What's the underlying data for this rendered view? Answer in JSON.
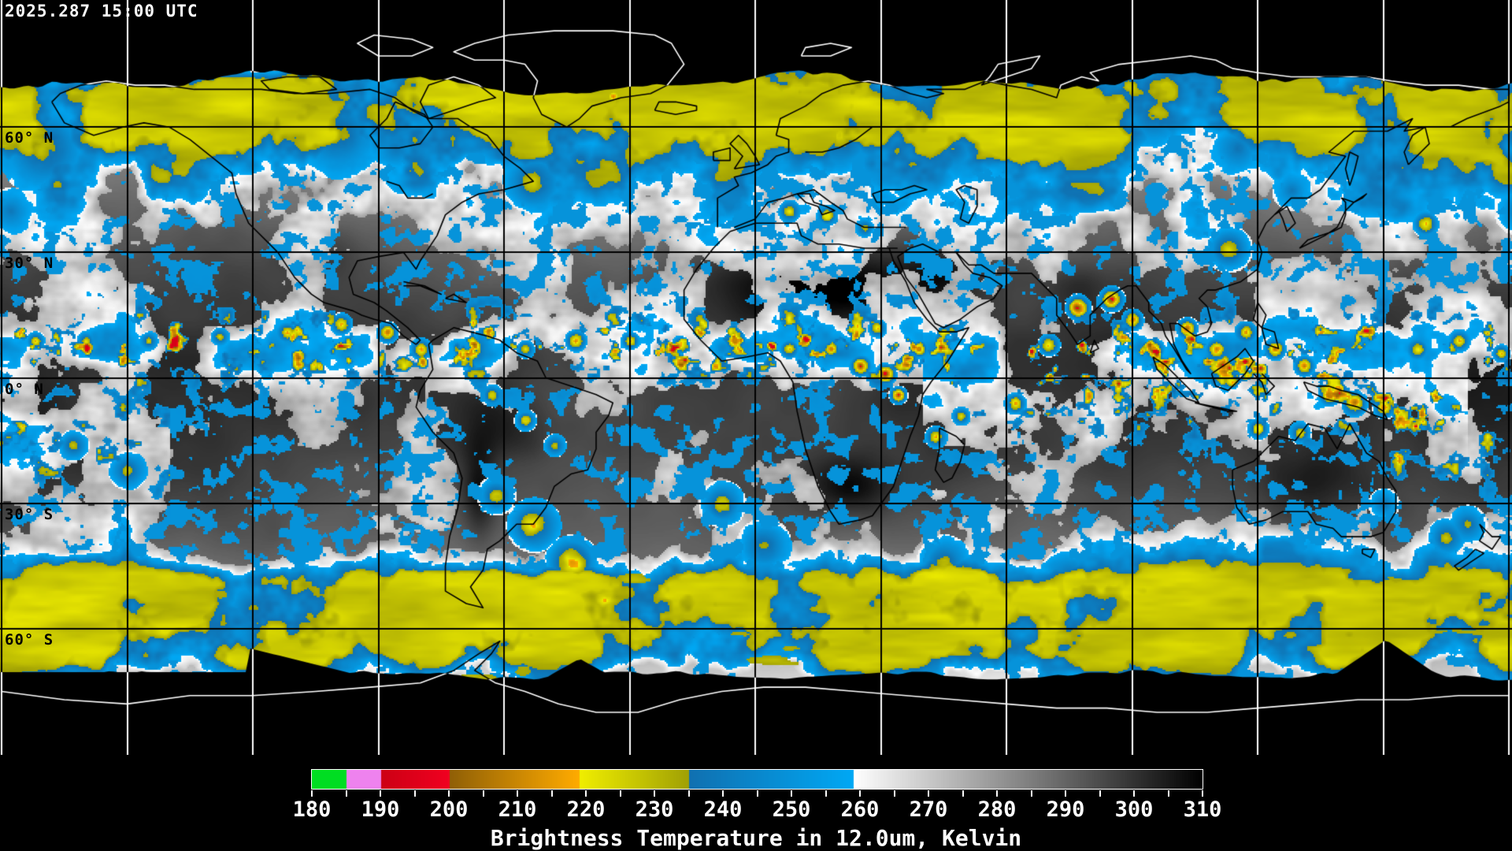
{
  "header": {
    "timestamp": "2025.287 15:00 UTC"
  },
  "map": {
    "projection": "equirectangular",
    "latitude_labels": [
      {
        "text": "60° N",
        "lat": 60
      },
      {
        "text": "30° N",
        "lat": 30
      },
      {
        "text": "0° N",
        "lat": 0
      },
      {
        "text": "30° S",
        "lat": -30
      },
      {
        "text": "60° S",
        "lat": -60
      }
    ],
    "graticule": {
      "lon_step_deg": 30,
      "lat_step_deg": 30,
      "line_color_over_data": "#000000",
      "line_color_over_nodata": "#ffffff"
    },
    "coastline_color_over_data": "#000000",
    "coastline_color_over_nodata": "#ffffff",
    "nodata_color": "#000000"
  },
  "colorbar": {
    "title": "Brightness Temperature in 12.0um, Kelvin",
    "units": "Kelvin",
    "min": 180,
    "max": 310,
    "tick_interval": 5,
    "label_interval": 10,
    "tick_labels": [
      "180",
      "190",
      "200",
      "210",
      "220",
      "230",
      "240",
      "250",
      "260",
      "270",
      "280",
      "290",
      "300",
      "310"
    ],
    "tick_color": "#ffffff",
    "border_color": "#ffffff",
    "stops": [
      {
        "from": 180,
        "to": 185,
        "from_color": "#00dd22",
        "to_color": "#00dd22",
        "name": "green"
      },
      {
        "from": 185,
        "to": 190,
        "from_color": "#ee82ee",
        "to_color": "#ee82ee",
        "name": "violet"
      },
      {
        "from": 190,
        "to": 200,
        "from_color": "#cc0014",
        "to_color": "#f00020",
        "name": "red"
      },
      {
        "from": 200,
        "to": 219,
        "from_color": "#8f5f06",
        "to_color": "#ffab00",
        "name": "orange"
      },
      {
        "from": 219,
        "to": 235,
        "from_color": "#f0ee00",
        "to_color": "#a0a004",
        "name": "yellow-olive"
      },
      {
        "from": 235,
        "to": 259,
        "from_color": "#1070b0",
        "to_color": "#00a8f4",
        "name": "blue"
      },
      {
        "from": 259,
        "to": 310,
        "from_color": "#ffffff",
        "to_color": "#000000",
        "name": "grayscale"
      }
    ]
  }
}
